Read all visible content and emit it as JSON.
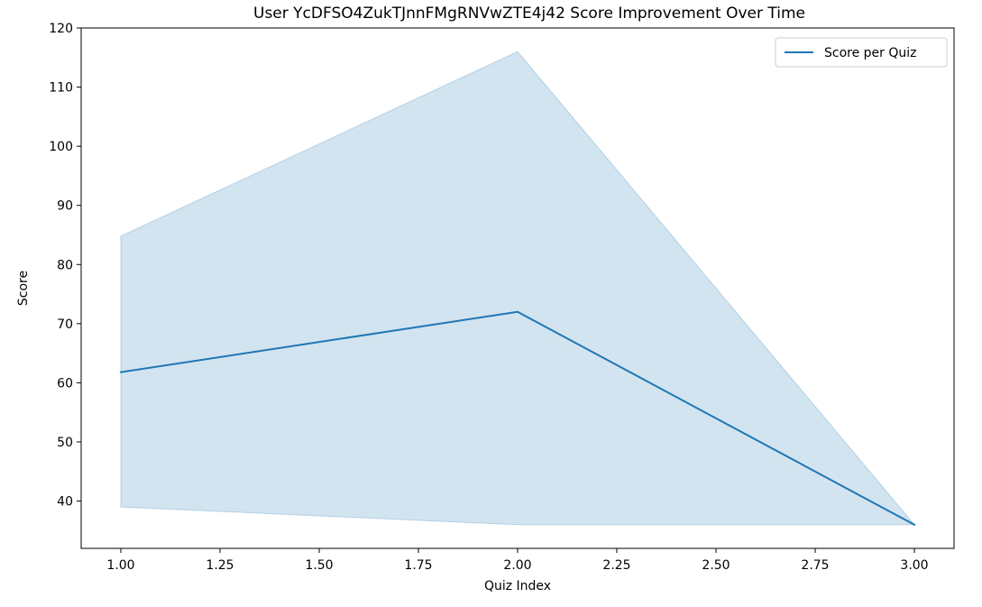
{
  "chart_data": {
    "type": "line",
    "title": "User YcDFSO4ZukTJnnFMgRNVwZTE4j42 Score Improvement Over Time",
    "xlabel": "Quiz Index",
    "ylabel": "Score",
    "xlim": [
      0.9,
      3.1
    ],
    "ylim": [
      32,
      120
    ],
    "x_ticks": [
      1.0,
      1.25,
      1.5,
      1.75,
      2.0,
      2.25,
      2.5,
      2.75,
      3.0
    ],
    "x_tick_labels": [
      "1.00",
      "1.25",
      "1.50",
      "1.75",
      "2.00",
      "2.25",
      "2.50",
      "2.75",
      "3.00"
    ],
    "y_ticks": [
      40,
      50,
      60,
      70,
      80,
      90,
      100,
      110,
      120
    ],
    "y_tick_labels": [
      "40",
      "50",
      "60",
      "70",
      "80",
      "90",
      "100",
      "110",
      "120"
    ],
    "grid": false,
    "legend": {
      "placement": "top-right"
    },
    "series": [
      {
        "name": "Score per Quiz",
        "x": [
          1.0,
          2.0,
          3.0
        ],
        "values": [
          61.8,
          72.0,
          36.0
        ],
        "band_lower": [
          39.0,
          36.0,
          36.0
        ],
        "band_upper": [
          84.8,
          116.0,
          36.0
        ],
        "color": "#1f77b4",
        "band_color": "#1f77b4"
      }
    ]
  }
}
